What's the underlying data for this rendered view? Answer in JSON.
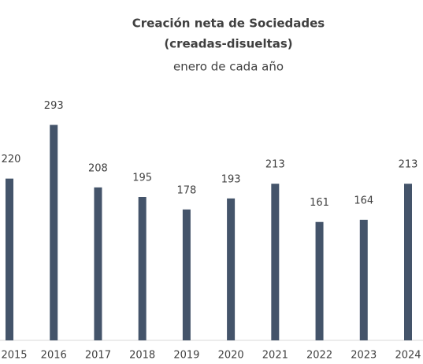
{
  "chart_data": {
    "type": "bar",
    "title": [
      "Creación neta de Sociedades",
      "(creadas-disueltas)"
    ],
    "subtitle": "enero de cada año",
    "categories": [
      "2015",
      "2016",
      "2017",
      "2018",
      "2019",
      "2020",
      "2021",
      "2022",
      "2023",
      "2024"
    ],
    "values": [
      220,
      293,
      208,
      195,
      178,
      193,
      213,
      161,
      164,
      213
    ],
    "color": "#44546a",
    "ylim": [
      0,
      300
    ]
  }
}
